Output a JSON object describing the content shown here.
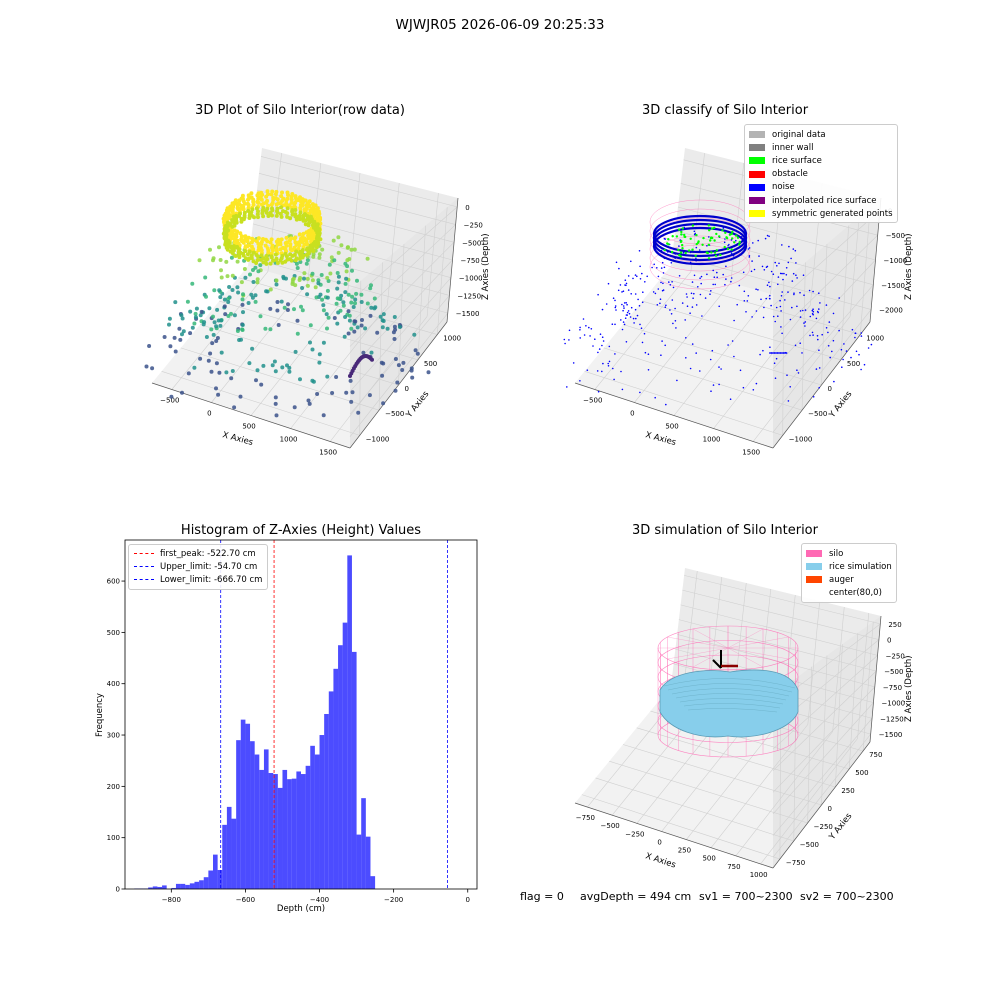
{
  "figure": {
    "title": "WJWJR05 2026-06-09 20:25:33"
  },
  "panels": {
    "raw": {
      "title": "3D Plot of Silo Interior(row data)",
      "xlabel": "X Axies",
      "ylabel": "Y Axies",
      "zlabel": "Z Axies (Depth)",
      "xticks": [
        "−500",
        "0",
        "500",
        "1000",
        "1500"
      ],
      "yticks": [
        "−1000",
        "−500",
        "0",
        "500",
        "1000"
      ],
      "zticks": [
        "0",
        "−250",
        "−500",
        "−750",
        "−1000",
        "−1250",
        "−1500"
      ]
    },
    "classify": {
      "title": "3D classify of Silo Interior",
      "xlabel": "X Axies",
      "ylabel": "Y Axies",
      "zlabel": "Z Axies (Depth)",
      "xticks": [
        "−500",
        "0",
        "500",
        "1000",
        "1500"
      ],
      "yticks": [
        "−1000",
        "−500",
        "0",
        "500",
        "1000"
      ],
      "zticks": [
        "0",
        "−500",
        "−1000",
        "−1500",
        "−2000"
      ],
      "legend": [
        {
          "label": "original data",
          "color": "#b3b3b3"
        },
        {
          "label": "inner wall",
          "color": "#808080"
        },
        {
          "label": "rice surface",
          "color": "#00ff00"
        },
        {
          "label": "obstacle",
          "color": "#ff0000"
        },
        {
          "label": "noise",
          "color": "#0000ff"
        },
        {
          "label": "interpolated rice surface",
          "color": "#800080"
        },
        {
          "label": "symmetric generated points",
          "color": "#ffff00"
        }
      ]
    },
    "simulation": {
      "title": "3D simulation of Silo Interior",
      "xlabel": "X Axies",
      "ylabel": "Y Axies",
      "zlabel": "Z Axies (Depth)",
      "xticks": [
        "−750",
        "−500",
        "−250",
        "0",
        "250",
        "500",
        "750",
        "1000"
      ],
      "yticks": [
        "−750",
        "−500",
        "−250",
        "0",
        "250",
        "500",
        "750"
      ],
      "zticks": [
        "250",
        "0",
        "−250",
        "−500",
        "−750",
        "−1000",
        "−1250",
        "−1500"
      ],
      "legend": [
        {
          "label": "silo",
          "color": "#ff69b4"
        },
        {
          "label": "rice simulation",
          "color": "#87ceeb"
        },
        {
          "label": "auger",
          "color": "#ff4500"
        },
        {
          "label": "center(80,0)",
          "color": ""
        }
      ]
    }
  },
  "chart_data": {
    "type": "bar",
    "title": "Histogram of Z-Axies (Height) Values",
    "xlabel": "Depth (cm)",
    "ylabel": "Frequency",
    "xlim": [
      -925,
      25
    ],
    "ylim": [
      0,
      680
    ],
    "xticks": [
      -800,
      -600,
      -400,
      -200,
      0
    ],
    "yticks": [
      0,
      100,
      200,
      300,
      400,
      500,
      600
    ],
    "bin_width": 12.5,
    "bins_start": -900,
    "values": [
      1,
      1,
      1,
      3,
      5,
      4,
      7,
      0,
      2,
      10,
      10,
      8,
      11,
      14,
      17,
      23,
      36,
      67,
      37,
      125,
      160,
      137,
      290,
      330,
      322,
      288,
      262,
      232,
      272,
      226,
      224,
      197,
      232,
      214,
      215,
      229,
      224,
      240,
      279,
      262,
      300,
      341,
      385,
      429,
      475,
      519,
      650,
      462,
      106,
      177,
      102,
      25
    ],
    "bar_color": "#0000ff",
    "bar_alpha": 0.7,
    "vlines": [
      {
        "label": "first_peak: -522.70 cm",
        "x": -522.7,
        "color": "#ff0000"
      },
      {
        "label": "Upper_limit: -54.70 cm",
        "x": -54.7,
        "color": "#0000ff"
      },
      {
        "label": "Lower_limit: -666.70 cm",
        "x": -666.7,
        "color": "#0000ff"
      }
    ],
    "legend_position": "top-left"
  },
  "status": {
    "flag": "flag = 0",
    "avg_depth": "avgDepth = 494 cm",
    "sv1": "sv1 = 700~2300",
    "sv2": "sv2 = 700~2300"
  }
}
